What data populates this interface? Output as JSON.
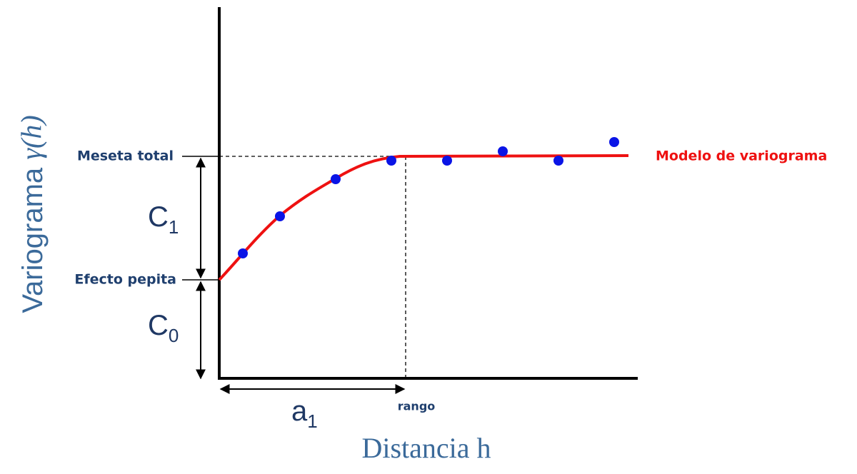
{
  "labels": {
    "sill": "Meseta total",
    "nugget": "Efecto pepita",
    "c1": {
      "base": "C",
      "sub": "1"
    },
    "c0": {
      "base": "C",
      "sub": "0"
    },
    "a1": {
      "base": "a",
      "sub": "1"
    },
    "range": "rango",
    "model": "Modelo de variograma"
  },
  "y_axis_title": {
    "text": "Variograma ",
    "symbol": "γ(h)"
  },
  "x_axis_title": "Distancia h"
}
